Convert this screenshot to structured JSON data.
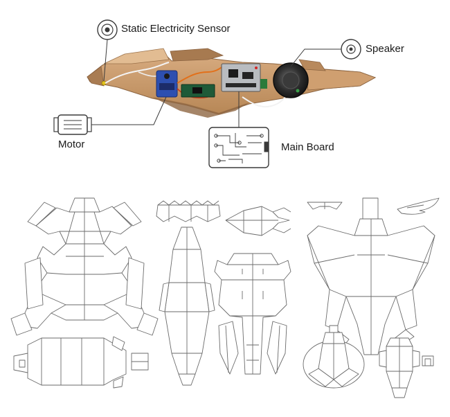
{
  "labels": {
    "static_sensor": "Static Electricity Sensor",
    "speaker": "Speaker",
    "motor": "Motor",
    "main_board": "Main Board"
  },
  "colors": {
    "cardboard": "#c8996a",
    "cardboard_dark": "#9c7048",
    "cardboard_light": "#dcb48a",
    "line": "#3a3a3a",
    "pattern_stroke": "#6a6a6a",
    "servo_blue": "#2d4fb0",
    "board_silver": "#b9bcc0",
    "speaker_dark": "#2a2a2a"
  }
}
